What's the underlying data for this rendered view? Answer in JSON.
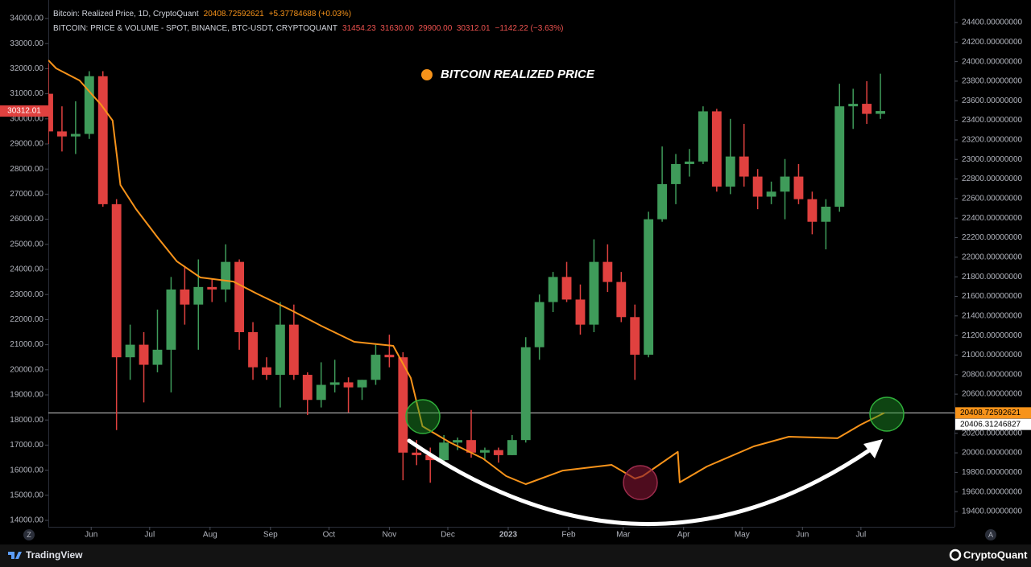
{
  "chart_data": {
    "type": "candlestick",
    "legend_lines": [
      {
        "name": "Bitcoin: Realized Price, 1D, CryptoQuant",
        "value": "20408.72592621",
        "change": "+5.37784688 (+0.03%)",
        "color": "#f7931a"
      },
      {
        "name": "BITCOIN: PRICE & VOLUME - SPOT, BINANCE, BTC-USDT, CRYPTOQUANT",
        "value": "31454.23  31630.00  29900.00  30312.01",
        "change": "−1142.22 (−3.63%)",
        "color": "#ef5350"
      }
    ],
    "x": [
      0,
      7,
      14,
      21,
      28,
      35,
      42,
      49,
      56,
      63,
      70,
      77,
      84,
      91,
      98,
      105,
      112,
      119,
      126,
      133,
      140,
      147,
      154,
      161,
      168,
      175,
      182,
      189,
      196,
      203,
      210,
      217,
      224,
      231,
      238,
      245,
      252,
      259,
      266,
      273,
      280,
      287,
      294,
      301,
      308,
      315,
      322,
      329,
      336,
      343,
      350,
      357,
      364,
      371,
      378,
      385,
      392,
      399,
      406,
      413,
      420,
      427
    ],
    "open": [
      31000,
      29500,
      29300,
      29400,
      31700,
      26600,
      20500,
      21000,
      20200,
      20800,
      23200,
      22600,
      23300,
      23200,
      24300,
      21500,
      20100,
      19800,
      21800,
      19800,
      18800,
      19400,
      19500,
      19300,
      19600,
      20600,
      20500,
      16700,
      16600,
      16400,
      17100,
      17200,
      16700,
      16800,
      16600,
      17200,
      20900,
      22700,
      23700,
      22800,
      21800,
      24300,
      23500,
      22100,
      20600,
      26000,
      27400,
      28200,
      28300,
      30300,
      27300,
      28500,
      27700,
      26900,
      27100,
      27700,
      26800,
      25900,
      26500,
      30500,
      30600,
      30200
    ],
    "high": [
      32200,
      30500,
      30700,
      31900,
      31900,
      26800,
      21800,
      21500,
      22400,
      23700,
      24100,
      24400,
      23600,
      25000,
      24400,
      21900,
      20500,
      22700,
      22600,
      19900,
      20300,
      20400,
      19700,
      19600,
      21000,
      21400,
      20700,
      17200,
      16900,
      17400,
      17300,
      18400,
      16900,
      16900,
      17400,
      21300,
      23000,
      23900,
      24300,
      23400,
      25200,
      25000,
      23900,
      22600,
      26300,
      28900,
      28600,
      28800,
      30500,
      30400,
      30000,
      29800,
      28000,
      27500,
      28400,
      28200,
      27100,
      26800,
      31400,
      31200,
      31500,
      31800
    ],
    "low": [
      29000,
      28700,
      28600,
      29200,
      26500,
      17600,
      19600,
      18700,
      19900,
      19100,
      21800,
      20800,
      22700,
      22700,
      20800,
      19600,
      19600,
      18500,
      19600,
      18200,
      18500,
      19100,
      18300,
      18800,
      19400,
      20100,
      15600,
      16200,
      15500,
      16200,
      16800,
      16500,
      16400,
      16300,
      16600,
      17100,
      20400,
      22300,
      22700,
      21400,
      21500,
      23100,
      21900,
      19600,
      20500,
      25900,
      26600,
      27700,
      28200,
      27100,
      27000,
      27300,
      26400,
      26600,
      26000,
      26600,
      25400,
      24800,
      26300,
      29600,
      29800,
      30000
    ],
    "close": [
      29500,
      29300,
      29400,
      31700,
      26600,
      20500,
      21000,
      20200,
      20800,
      23200,
      22600,
      23300,
      23200,
      24300,
      21500,
      20100,
      19800,
      21800,
      19800,
      18800,
      19400,
      19500,
      19300,
      19600,
      20600,
      20500,
      16700,
      16600,
      16400,
      17100,
      17200,
      16700,
      16800,
      16600,
      17200,
      20900,
      22700,
      23700,
      22800,
      21800,
      24300,
      23500,
      22100,
      20600,
      26000,
      27400,
      28200,
      28300,
      30300,
      27300,
      28500,
      27700,
      26900,
      27100,
      27700,
      26800,
      25900,
      26500,
      30500,
      30600,
      30200,
      30312.01
    ],
    "up_color": "#3f9b5a",
    "down_color": "#e0413f",
    "series": [
      {
        "name": "BITCOIN REALIZED PRICE",
        "color": "#f7931a",
        "axis": "y2",
        "x": [
          0,
          4,
          16,
          27,
          33,
          37,
          45,
          56,
          66,
          78,
          95,
          107,
          124,
          140,
          157,
          177,
          186,
          192,
          206,
          223,
          235,
          245,
          264,
          289,
          301,
          305,
          323,
          324,
          338,
          362,
          380,
          405,
          417,
          429
        ],
        "values": [
          24014,
          23931,
          23808,
          23561,
          23397,
          22739,
          22492,
          22204,
          21957,
          21793,
          21751,
          21628,
          21464,
          21299,
          21135,
          21094,
          20765,
          20272,
          20107,
          19943,
          19762,
          19680,
          19819,
          19877,
          19737,
          19762,
          20010,
          19698,
          19861,
          20066,
          20165,
          20149,
          20289,
          20408.72592621
        ]
      }
    ],
    "xlim": [
      0,
      465
    ],
    "xticks": [
      {
        "value": 22,
        "label": "Jun"
      },
      {
        "value": 52,
        "label": "Jul"
      },
      {
        "value": 83,
        "label": "Aug"
      },
      {
        "value": 114,
        "label": "Sep"
      },
      {
        "value": 144,
        "label": "Oct"
      },
      {
        "value": 175,
        "label": "Nov"
      },
      {
        "value": 205,
        "label": "Dec"
      },
      {
        "value": 236,
        "label": "2023"
      },
      {
        "value": 267,
        "label": "Feb"
      },
      {
        "value": 295,
        "label": "Mar"
      },
      {
        "value": 326,
        "label": "Apr"
      },
      {
        "value": 356,
        "label": "May"
      },
      {
        "value": 387,
        "label": "Jun"
      },
      {
        "value": 417,
        "label": "Jul"
      }
    ],
    "ylim": [
      13744,
      34737
    ],
    "yticks": [
      {
        "value": 14000,
        "label": "14000.00"
      },
      {
        "value": 15000,
        "label": "15000.00"
      },
      {
        "value": 16000,
        "label": "16000.00"
      },
      {
        "value": 17000,
        "label": "17000.00"
      },
      {
        "value": 18000,
        "label": "18000.00"
      },
      {
        "value": 19000,
        "label": "19000.00"
      },
      {
        "value": 20000,
        "label": "20000.00"
      },
      {
        "value": 21000,
        "label": "21000.00"
      },
      {
        "value": 22000,
        "label": "22000.00"
      },
      {
        "value": 23000,
        "label": "23000.00"
      },
      {
        "value": 24000,
        "label": "24000.00"
      },
      {
        "value": 25000,
        "label": "25000.00"
      },
      {
        "value": 26000,
        "label": "26000.00"
      },
      {
        "value": 27000,
        "label": "27000.00"
      },
      {
        "value": 28000,
        "label": "28000.00"
      },
      {
        "value": 29000,
        "label": "29000.00"
      },
      {
        "value": 30000,
        "label": "30000.00"
      },
      {
        "value": 31000,
        "label": "31000.00"
      },
      {
        "value": 32000,
        "label": "32000.00"
      },
      {
        "value": 33000,
        "label": "33000.00"
      },
      {
        "value": 34000,
        "label": "34000.00"
      }
    ],
    "y2lim": [
      19244,
      24630
    ],
    "y2ticks": [
      {
        "value": 19400,
        "label": "19400.00000000"
      },
      {
        "value": 19600,
        "label": "19600.00000000"
      },
      {
        "value": 19800,
        "label": "19800.00000000"
      },
      {
        "value": 20000,
        "label": "20000.00000000"
      },
      {
        "value": 20200,
        "label": "20200.00000000"
      },
      {
        "value": 20400,
        "label": "20400.00000000"
      },
      {
        "value": 20600,
        "label": "20600.00000000"
      },
      {
        "value": 20800,
        "label": "20800.00000000"
      },
      {
        "value": 21000,
        "label": "21000.00000000"
      },
      {
        "value": 21200,
        "label": "21200.00000000"
      },
      {
        "value": 21400,
        "label": "21400.00000000"
      },
      {
        "value": 21600,
        "label": "21600.00000000"
      },
      {
        "value": 21800,
        "label": "21800.00000000"
      },
      {
        "value": 22000,
        "label": "22000.00000000"
      },
      {
        "value": 22200,
        "label": "22200.00000000"
      },
      {
        "value": 22400,
        "label": "22400.00000000"
      },
      {
        "value": 22600,
        "label": "22600.00000000"
      },
      {
        "value": 22800,
        "label": "22800.00000000"
      },
      {
        "value": 23000,
        "label": "23000.00000000"
      },
      {
        "value": 23200,
        "label": "23200.00000000"
      },
      {
        "value": 23400,
        "label": "23400.00000000"
      },
      {
        "value": 23600,
        "label": "23600.00000000"
      },
      {
        "value": 23800,
        "label": "23800.00000000"
      },
      {
        "value": 24000,
        "label": "24000.00000000"
      },
      {
        "value": 24200,
        "label": "24200.00000000"
      },
      {
        "value": 24400,
        "label": "24400.00000000"
      }
    ],
    "last_price": 30312.01,
    "y2_labels": [
      20408.72592621,
      20406.31246827
    ],
    "y2_label_colors": [
      "#f7931a",
      "#ffffff"
    ],
    "axis_buttons": [
      "Z",
      "A"
    ]
  },
  "branding": {
    "left": "TradingView",
    "right": "CryptoQuant"
  }
}
